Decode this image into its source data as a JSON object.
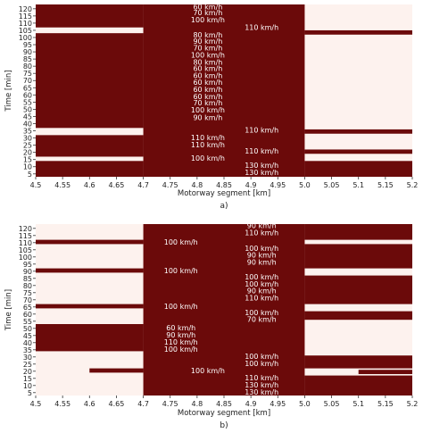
{
  "colors": {
    "occupied": "#6b0a0a",
    "free": "#fdf2ee",
    "axis": "#333333"
  },
  "chart_data": [
    {
      "type": "heatmap",
      "caption": "a)",
      "xlabel": "Motorway segment [km]",
      "ylabel": "Time [min]",
      "xlim": [
        4.5,
        5.2
      ],
      "ylim": [
        3,
        123
      ],
      "x_ticks": [
        "4.5",
        "4.55",
        "4.6",
        "4.65",
        "4.7",
        "4.75",
        "4.8",
        "4.85",
        "4.9",
        "4.95",
        "5.0",
        "5.05",
        "5.1",
        "5.15",
        "5.2"
      ],
      "y_ticks": [
        "5",
        "10",
        "15",
        "20",
        "25",
        "30",
        "35",
        "40",
        "45",
        "50",
        "55",
        "60",
        "65",
        "70",
        "75",
        "80",
        "85",
        "90",
        "95",
        "100",
        "105",
        "110",
        "115",
        "120"
      ],
      "occupied_cells": [
        {
          "x": [
            4.7,
            5.0
          ],
          "t": [
            3,
            123
          ]
        },
        {
          "x": [
            4.5,
            4.7
          ],
          "t": [
            37,
            103
          ]
        },
        {
          "x": [
            4.5,
            4.7
          ],
          "t": [
            107,
            123
          ]
        },
        {
          "x": [
            4.5,
            4.7
          ],
          "t": [
            17,
            32
          ]
        },
        {
          "x": [
            4.5,
            4.7
          ],
          "t": [
            3,
            14
          ]
        },
        {
          "x": [
            5.0,
            5.2
          ],
          "t": [
            102,
            105
          ]
        },
        {
          "x": [
            5.0,
            5.2
          ],
          "t": [
            33,
            36
          ]
        },
        {
          "x": [
            5.0,
            5.2
          ],
          "t": [
            19,
            22
          ]
        },
        {
          "x": [
            5.0,
            5.2
          ],
          "t": [
            3,
            14
          ]
        }
      ],
      "annotations": [
        {
          "text": "60 km/h",
          "x": 4.82,
          "t": 121.5
        },
        {
          "text": "70 km/h",
          "x": 4.82,
          "t": 117.5
        },
        {
          "text": "100 km/h",
          "x": 4.82,
          "t": 112.5
        },
        {
          "text": "110 km/h",
          "x": 4.92,
          "t": 107
        },
        {
          "text": "80 km/h",
          "x": 4.82,
          "t": 102
        },
        {
          "text": "90 km/h",
          "x": 4.82,
          "t": 97.5
        },
        {
          "text": "70 km/h",
          "x": 4.82,
          "t": 93
        },
        {
          "text": "100 km/h",
          "x": 4.82,
          "t": 88
        },
        {
          "text": "80 km/h",
          "x": 4.82,
          "t": 83
        },
        {
          "text": "60 km/h",
          "x": 4.82,
          "t": 78.5
        },
        {
          "text": "60 km/h",
          "x": 4.82,
          "t": 73.5
        },
        {
          "text": "60 km/h",
          "x": 4.82,
          "t": 69
        },
        {
          "text": "60 km/h",
          "x": 4.82,
          "t": 64
        },
        {
          "text": "60 km/h",
          "x": 4.82,
          "t": 59
        },
        {
          "text": "70 km/h",
          "x": 4.82,
          "t": 54.5
        },
        {
          "text": "100 km/h",
          "x": 4.82,
          "t": 49.5
        },
        {
          "text": "90 km/h",
          "x": 4.82,
          "t": 44.5
        },
        {
          "text": "110 km/h",
          "x": 4.92,
          "t": 35.5
        },
        {
          "text": "110 km/h",
          "x": 4.82,
          "t": 30.5
        },
        {
          "text": "110 km/h",
          "x": 4.82,
          "t": 25.5
        },
        {
          "text": "110 km/h",
          "x": 4.92,
          "t": 21
        },
        {
          "text": "100 km/h",
          "x": 4.82,
          "t": 16
        },
        {
          "text": "130 km/h",
          "x": 4.92,
          "t": 11
        },
        {
          "text": "130 km/h",
          "x": 4.92,
          "t": 6
        }
      ]
    },
    {
      "type": "heatmap",
      "caption": "b)",
      "xlabel": "Motorway segment [km]",
      "ylabel": "Time [min]",
      "xlim": [
        4.5,
        5.2
      ],
      "ylim": [
        3,
        123
      ],
      "x_ticks": [
        "4.5",
        "4.55",
        "4.6",
        "4.65",
        "4.7",
        "4.75",
        "4.8",
        "4.85",
        "4.9",
        "4.95",
        "5.0",
        "5.05",
        "5.1",
        "5.15",
        "5.2"
      ],
      "y_ticks": [
        "5",
        "10",
        "15",
        "20",
        "25",
        "30",
        "35",
        "40",
        "45",
        "50",
        "55",
        "60",
        "65",
        "70",
        "75",
        "80",
        "85",
        "90",
        "95",
        "100",
        "105",
        "110",
        "115",
        "120"
      ],
      "occupied_cells": [
        {
          "x": [
            4.7,
            5.0
          ],
          "t": [
            3,
            123
          ]
        },
        {
          "x": [
            4.5,
            4.7
          ],
          "t": [
            109,
            112
          ]
        },
        {
          "x": [
            4.5,
            4.7
          ],
          "t": [
            89,
            92
          ]
        },
        {
          "x": [
            4.5,
            4.7
          ],
          "t": [
            64,
            67
          ]
        },
        {
          "x": [
            4.5,
            4.7
          ],
          "t": [
            34,
            53
          ]
        },
        {
          "x": [
            4.6,
            4.7
          ],
          "t": [
            19,
            22
          ]
        },
        {
          "x": [
            5.0,
            5.2
          ],
          "t": [
            112,
            123
          ]
        },
        {
          "x": [
            5.0,
            5.2
          ],
          "t": [
            92,
            109
          ]
        },
        {
          "x": [
            5.0,
            5.2
          ],
          "t": [
            67,
            87
          ]
        },
        {
          "x": [
            5.0,
            5.2
          ],
          "t": [
            56,
            62
          ]
        },
        {
          "x": [
            5.0,
            5.2
          ],
          "t": [
            22,
            31
          ]
        },
        {
          "x": [
            5.1,
            5.2
          ],
          "t": [
            18,
            21
          ]
        },
        {
          "x": [
            5.0,
            5.2
          ],
          "t": [
            3,
            17
          ]
        }
      ],
      "annotations": [
        {
          "text": "90 km/h",
          "x": 4.92,
          "t": 122
        },
        {
          "text": "110 km/h",
          "x": 4.92,
          "t": 117
        },
        {
          "text": "100 km/h",
          "x": 4.77,
          "t": 110.5
        },
        {
          "text": "100 km/h",
          "x": 4.92,
          "t": 106
        },
        {
          "text": "90 km/h",
          "x": 4.92,
          "t": 101.5
        },
        {
          "text": "90 km/h",
          "x": 4.92,
          "t": 96.5
        },
        {
          "text": "100 km/h",
          "x": 4.77,
          "t": 90.5
        },
        {
          "text": "100 km/h",
          "x": 4.92,
          "t": 86
        },
        {
          "text": "100 km/h",
          "x": 4.92,
          "t": 81
        },
        {
          "text": "90 km/h",
          "x": 4.92,
          "t": 76.5
        },
        {
          "text": "110 km/h",
          "x": 4.92,
          "t": 71.5
        },
        {
          "text": "100 km/h",
          "x": 4.77,
          "t": 65.5
        },
        {
          "text": "100 km/h",
          "x": 4.92,
          "t": 61
        },
        {
          "text": "70 km/h",
          "x": 4.92,
          "t": 56.5
        },
        {
          "text": "60 km/h",
          "x": 4.77,
          "t": 50.5
        },
        {
          "text": "90 km/h",
          "x": 4.77,
          "t": 45.5
        },
        {
          "text": "110 km/h",
          "x": 4.77,
          "t": 40.5
        },
        {
          "text": "100 km/h",
          "x": 4.77,
          "t": 35.5
        },
        {
          "text": "100 km/h",
          "x": 4.92,
          "t": 30.5
        },
        {
          "text": "100 km/h",
          "x": 4.92,
          "t": 25.5
        },
        {
          "text": "100 km/h",
          "x": 4.82,
          "t": 20.5
        },
        {
          "text": "110 km/h",
          "x": 4.92,
          "t": 15.5
        },
        {
          "text": "130 km/h",
          "x": 4.92,
          "t": 10.5
        },
        {
          "text": "130 km/h",
          "x": 4.92,
          "t": 5.5
        }
      ]
    }
  ]
}
